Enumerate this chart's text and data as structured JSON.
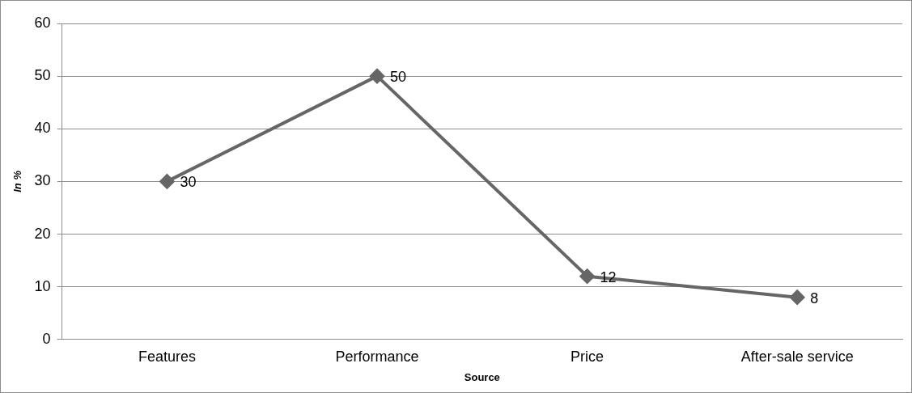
{
  "chart_data": {
    "type": "line",
    "xlabel": "Source",
    "ylabel": "In %",
    "categories": [
      "Features",
      "Performance",
      "Price",
      "After-sale service"
    ],
    "series": [
      {
        "color": "#666666",
        "values": [
          30,
          50,
          12,
          8
        ]
      }
    ],
    "ylim": [
      0,
      60
    ],
    "yticks": [
      0,
      10,
      20,
      30,
      40,
      50,
      60
    ],
    "grid": "y",
    "legend": false,
    "marker": "diamond",
    "line_style": "solid",
    "data_labels": true
  }
}
